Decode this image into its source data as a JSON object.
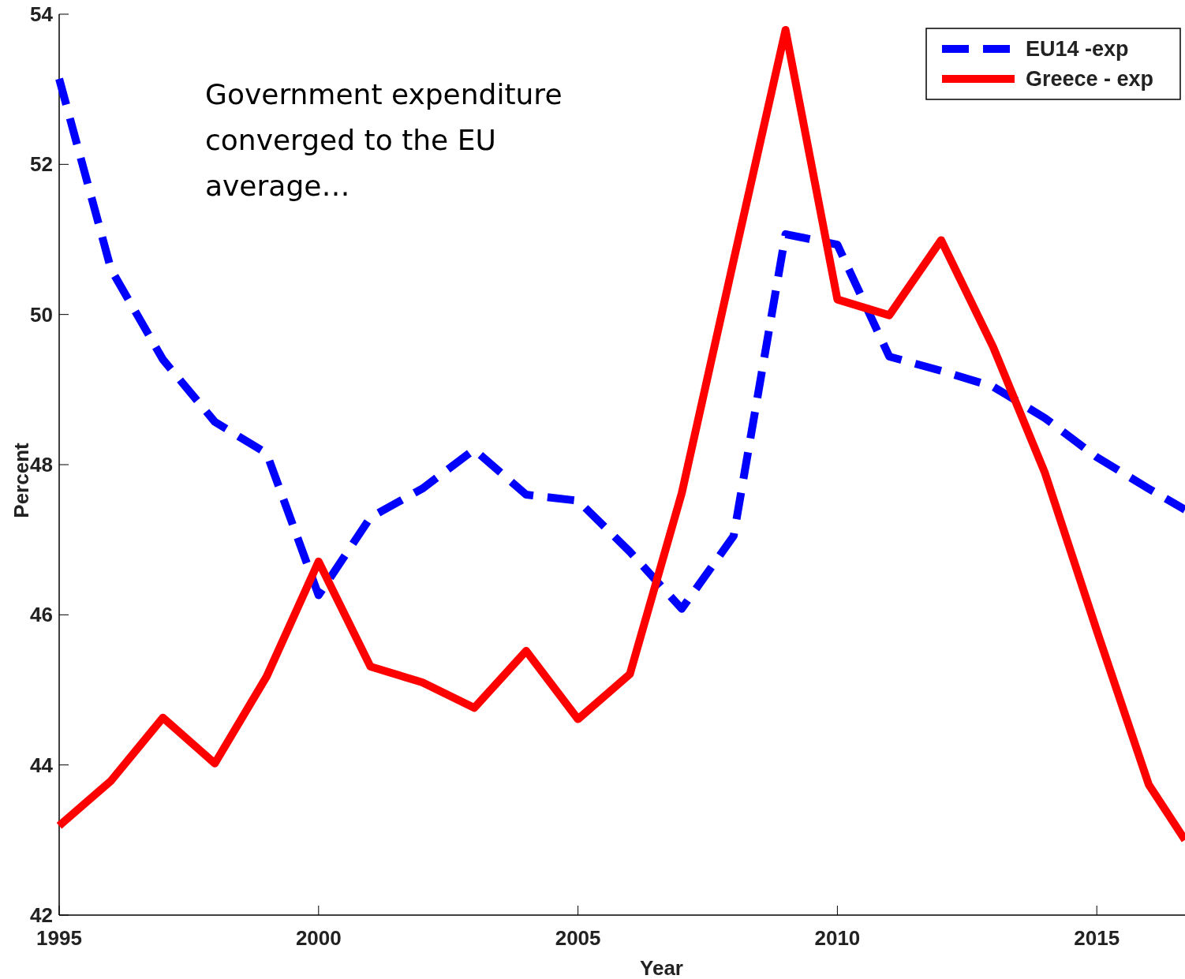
{
  "chart_data": {
    "type": "line",
    "xlabel": "Year",
    "ylabel": "Percent",
    "x": [
      1995,
      1996,
      1997,
      1998,
      1999,
      2000,
      2001,
      2002,
      2003,
      2004,
      2005,
      2006,
      2007,
      2008,
      2009,
      2010,
      2011,
      2012,
      2013,
      2014,
      2015,
      2016,
      2016.7
    ],
    "series": [
      {
        "name": "EU14 -exp",
        "color": "#0000ff",
        "line_style": "dashed",
        "values": [
          53.14,
          50.6,
          49.4,
          48.57,
          48.15,
          46.26,
          47.3,
          47.68,
          48.2,
          47.6,
          47.52,
          46.84,
          46.08,
          47.05,
          51.07,
          50.93,
          49.44,
          49.25,
          49.04,
          48.62,
          48.1,
          47.68,
          47.4
        ]
      },
      {
        "name": "Greece - exp",
        "color": "#ff0000",
        "line_style": "solid",
        "values": [
          43.19,
          43.79,
          44.63,
          44.02,
          45.18,
          46.71,
          45.31,
          45.1,
          44.76,
          45.52,
          44.61,
          45.21,
          47.62,
          50.72,
          53.79,
          50.2,
          49.99,
          50.99,
          49.57,
          47.89,
          45.79,
          43.74,
          43.0
        ]
      }
    ],
    "xlim": [
      1995,
      2016.7
    ],
    "xticks": [
      1995,
      2000,
      2005,
      2010,
      2015
    ],
    "ylim": [
      42,
      54
    ],
    "yticks": [
      42,
      44,
      46,
      48,
      50,
      52,
      54
    ],
    "grid": false,
    "legend": "top right",
    "annotations": [
      "Government expenditure converged to the EU average…"
    ]
  }
}
